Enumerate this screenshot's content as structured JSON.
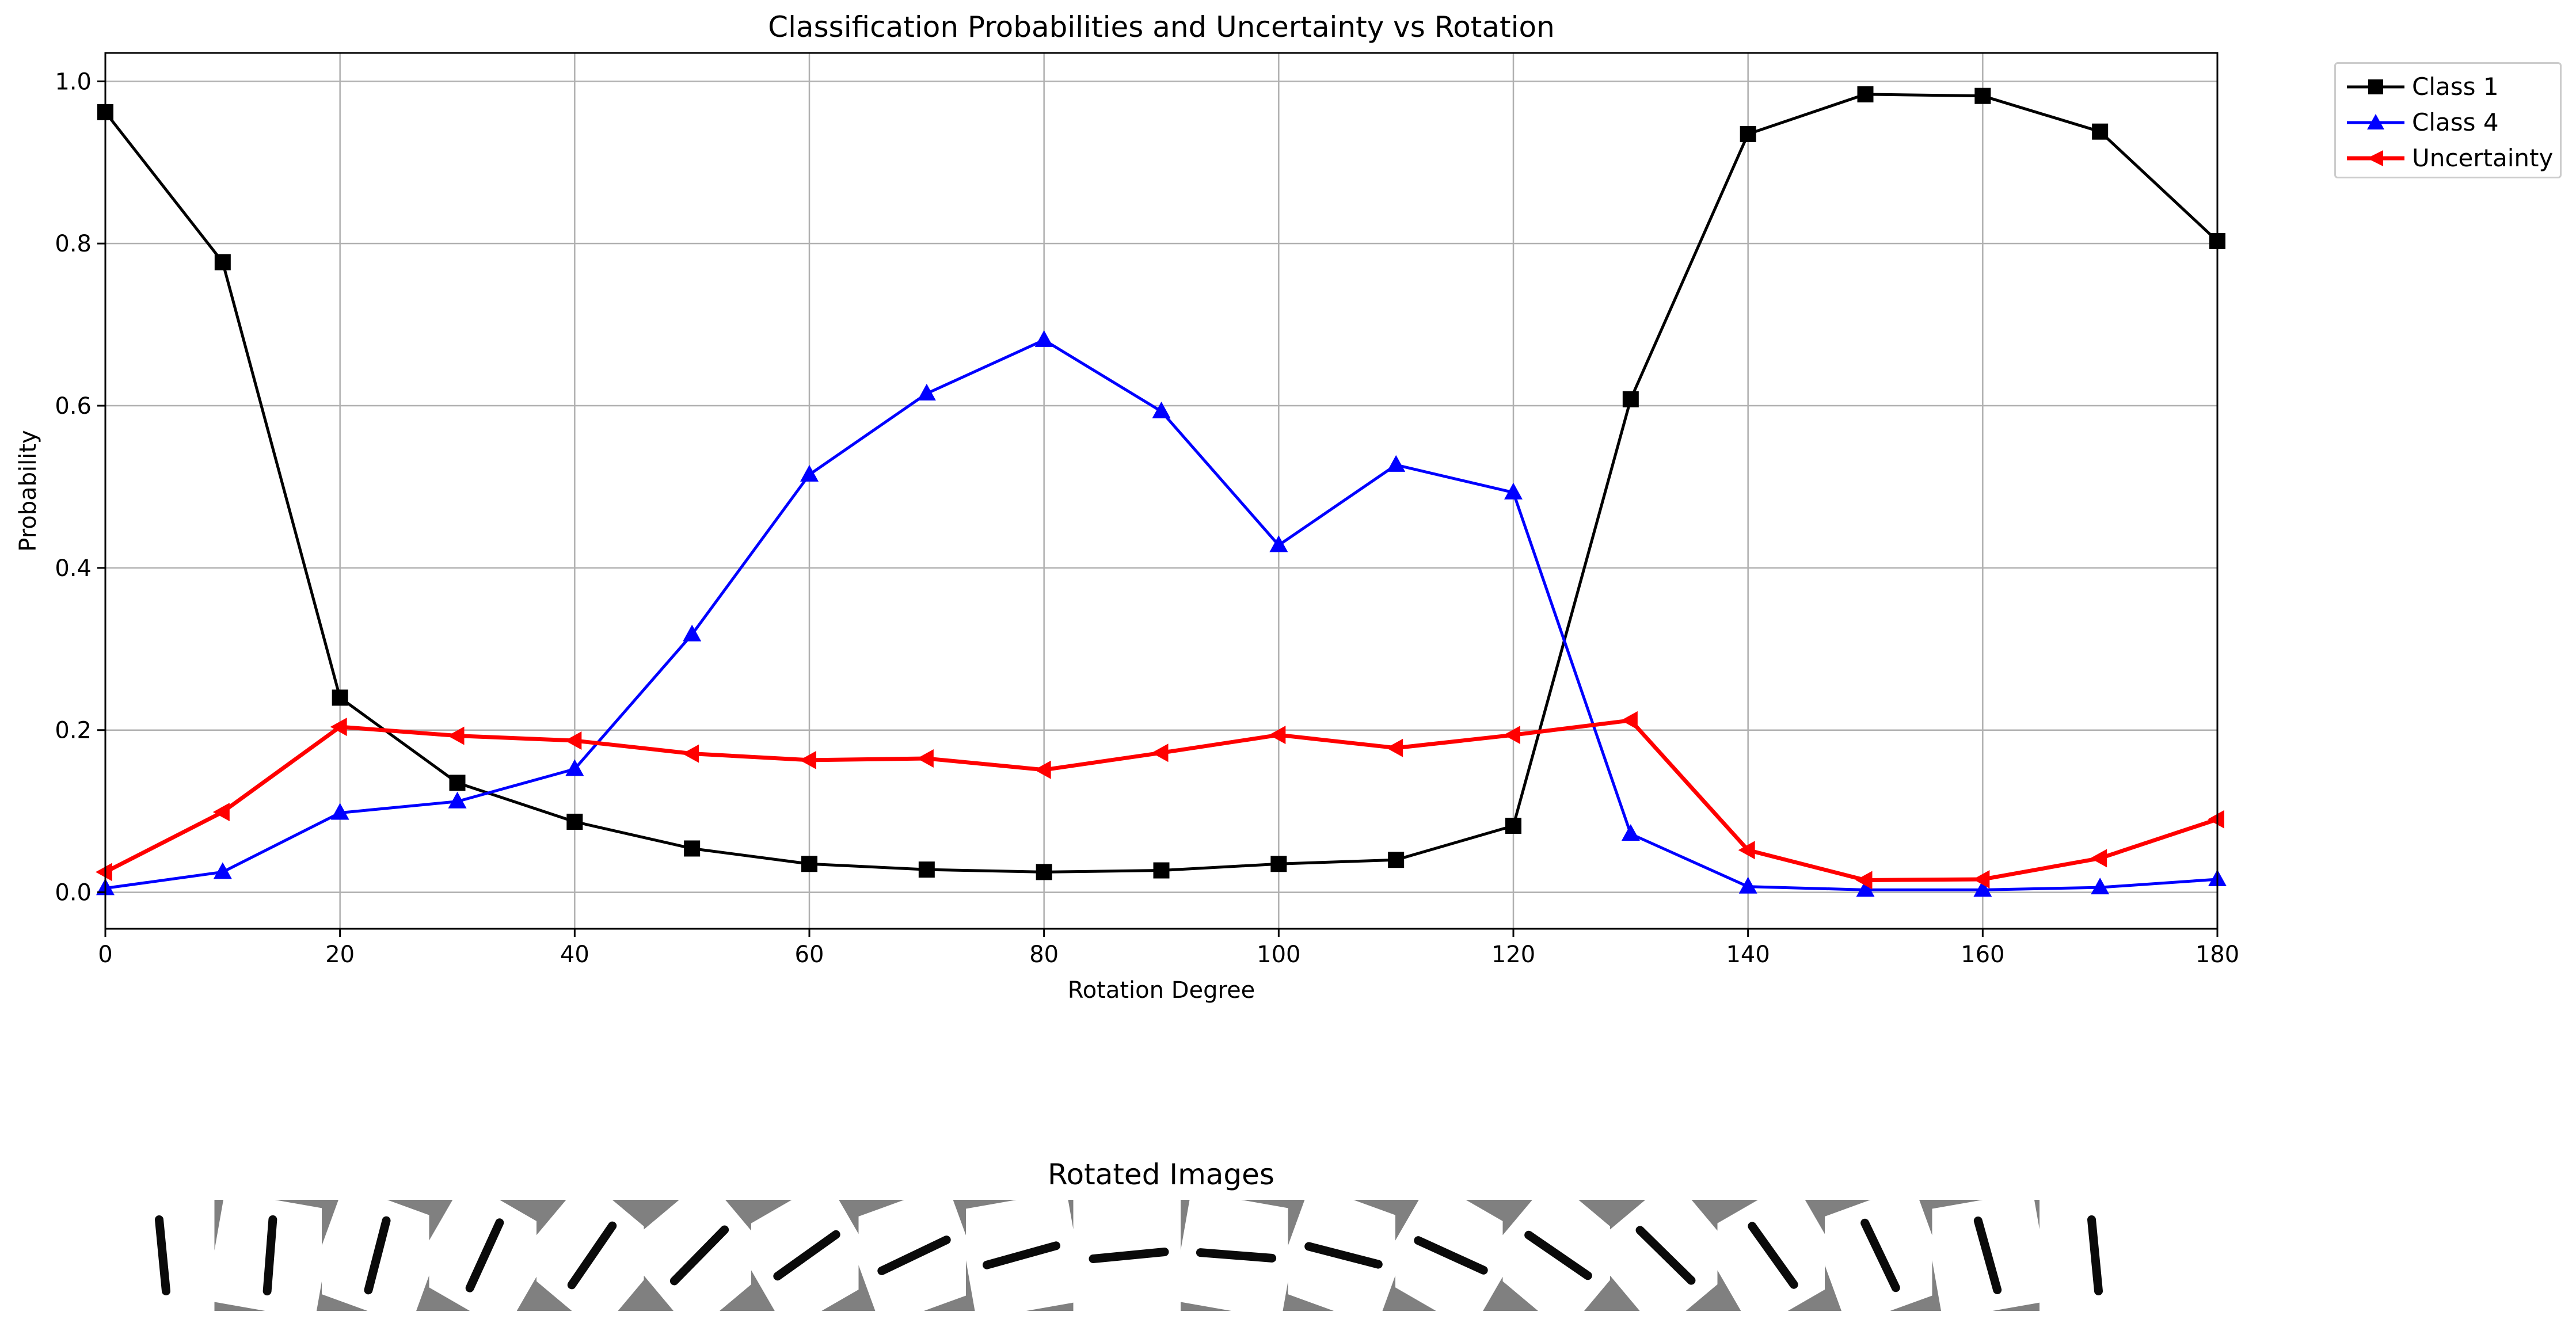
{
  "chart_data": [
    {
      "type": "line",
      "title": "Classification Probabilities and Uncertainty vs Rotation",
      "xlabel": "Rotation Degree",
      "ylabel": "Probability",
      "xlim": [
        0,
        180
      ],
      "ylim": [
        -0.045,
        1.035
      ],
      "grid": true,
      "legend_placement": "outside top-right",
      "x": [
        0,
        10,
        20,
        30,
        40,
        50,
        60,
        70,
        80,
        90,
        100,
        110,
        120,
        130,
        140,
        150,
        160,
        170,
        180
      ],
      "xticks": [
        "0",
        "20",
        "40",
        "60",
        "80",
        "100",
        "120",
        "140",
        "160",
        "180"
      ],
      "yticks": [
        "0.0",
        "0.2",
        "0.4",
        "0.6",
        "0.8",
        "1.0"
      ],
      "series": [
        {
          "name": "Class 1",
          "color": "#000000",
          "marker": "square",
          "values": [
            0.962,
            0.777,
            0.24,
            0.135,
            0.087,
            0.054,
            0.035,
            0.028,
            0.025,
            0.027,
            0.035,
            0.04,
            0.082,
            0.608,
            0.935,
            0.984,
            0.982,
            0.938,
            0.803
          ]
        },
        {
          "name": "Class 4",
          "color": "#0000ff",
          "marker": "triangle-up",
          "values": [
            0.005,
            0.025,
            0.098,
            0.112,
            0.152,
            0.318,
            0.515,
            0.615,
            0.681,
            0.593,
            0.428,
            0.527,
            0.493,
            0.072,
            0.007,
            0.003,
            0.003,
            0.006,
            0.016
          ]
        },
        {
          "name": "Uncertainty",
          "color": "#ff0000",
          "marker": "triangle-left",
          "values": [
            0.025,
            0.099,
            0.204,
            0.193,
            0.187,
            0.171,
            0.163,
            0.165,
            0.151,
            0.172,
            0.194,
            0.178,
            0.194,
            0.212,
            0.052,
            0.015,
            0.016,
            0.042,
            0.09
          ]
        }
      ]
    },
    {
      "type": "image-strip",
      "title": "Rotated Images",
      "angles": [
        0,
        10,
        20,
        30,
        40,
        50,
        60,
        70,
        80,
        90,
        100,
        110,
        120,
        130,
        140,
        150,
        160,
        170,
        180
      ]
    }
  ]
}
